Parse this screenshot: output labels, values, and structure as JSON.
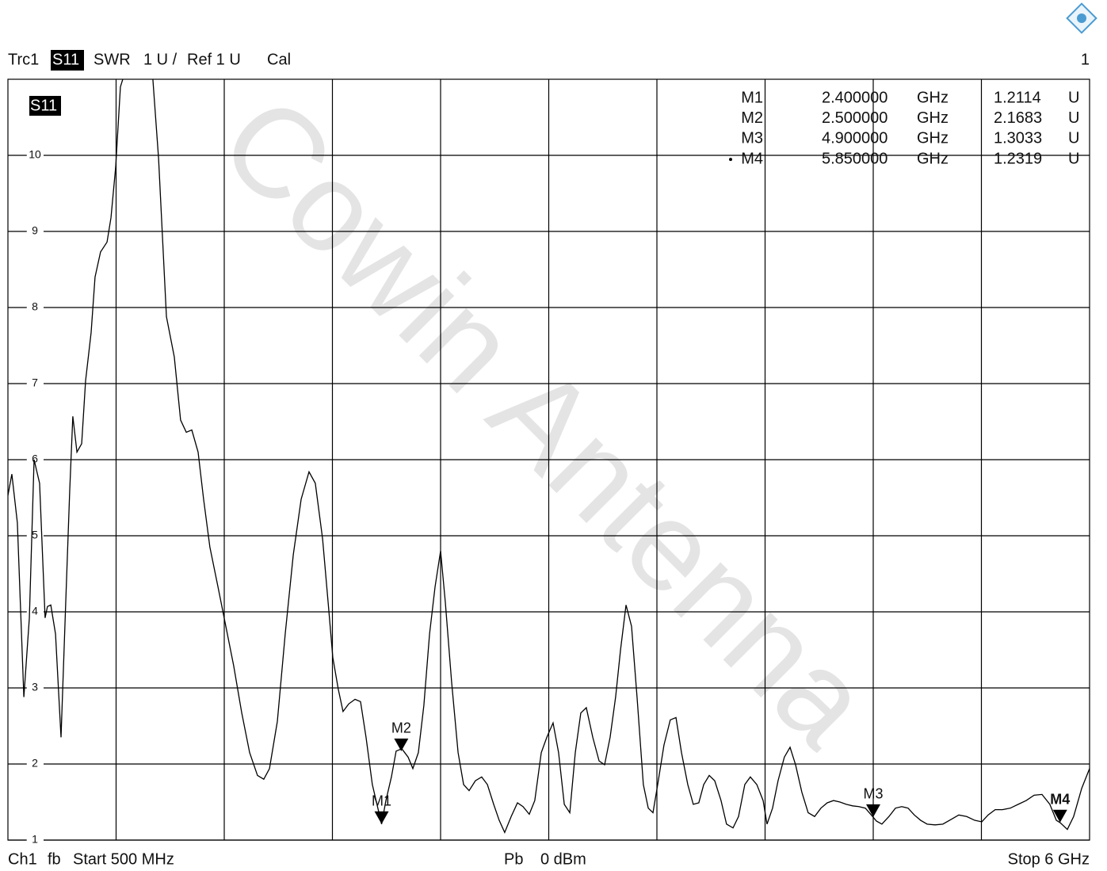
{
  "chart_data": {
    "type": "line",
    "header": {
      "trace": "Trc1",
      "format": "SWR",
      "scale": "1 U /",
      "ref": "Ref 1 U",
      "cal": "Cal",
      "window": "1"
    },
    "footer": {
      "channel": "Ch1",
      "mode": "fb",
      "start": "Start 500 MHz",
      "power_label": "Pb",
      "power": "0 dBm",
      "stop": "Stop 6 GHz"
    },
    "watermark": "Cowin Antenna",
    "xlim": [
      0.5,
      6
    ],
    "x_divisions": 10,
    "ylim": [
      1,
      11
    ],
    "yticks": [
      1,
      2,
      3,
      4,
      5,
      6,
      7,
      8,
      9,
      10
    ],
    "grid": true,
    "series": [
      {
        "name": "S11",
        "color": "#000000",
        "x": [
          0.5,
          0.52,
          0.548,
          0.581,
          0.609,
          0.633,
          0.661,
          0.689,
          0.701,
          0.718,
          0.742,
          0.77,
          0.794,
          0.814,
          0.83,
          0.851,
          0.875,
          0.895,
          0.923,
          0.943,
          0.971,
          1.004,
          1.024,
          1.048,
          1.072,
          1.084,
          1.145,
          1.237,
          1.266,
          1.306,
          1.346,
          1.378,
          1.407,
          1.435,
          1.467,
          1.495,
          1.527,
          1.568,
          1.608,
          1.648,
          1.689,
          1.729,
          1.769,
          1.801,
          1.83,
          1.87,
          1.91,
          1.951,
          1.991,
          2.031,
          2.063,
          2.1,
          2.128,
          2.152,
          2.18,
          2.204,
          2.233,
          2.265,
          2.293,
          2.321,
          2.353,
          2.4,
          2.422,
          2.45,
          2.474,
          2.503,
          2.535,
          2.559,
          2.587,
          2.615,
          2.644,
          2.672,
          2.7,
          2.724,
          2.756,
          2.789,
          2.817,
          2.845,
          2.877,
          2.909,
          2.938,
          2.97,
          2.998,
          3.026,
          3.059,
          3.091,
          3.119,
          3.151,
          3.179,
          3.212,
          3.24,
          3.272,
          3.3,
          3.329,
          3.357,
          3.385,
          3.413,
          3.441,
          3.474,
          3.506,
          3.534,
          3.562,
          3.59,
          3.615,
          3.643,
          3.671,
          3.699,
          3.731,
          3.756,
          3.78,
          3.804,
          3.836,
          3.868,
          3.897,
          3.925,
          3.957,
          3.985,
          4.013,
          4.038,
          4.066,
          4.094,
          4.126,
          4.154,
          4.187,
          4.215,
          4.247,
          4.275,
          4.308,
          4.34,
          4.36,
          4.388,
          4.416,
          4.448,
          4.477,
          4.505,
          4.537,
          4.569,
          4.602,
          4.634,
          4.666,
          4.698,
          4.731,
          4.763,
          4.795,
          4.827,
          4.86,
          4.9,
          4.916,
          4.944,
          4.98,
          5.013,
          5.045,
          5.077,
          5.109,
          5.141,
          5.174,
          5.214,
          5.254,
          5.295,
          5.335,
          5.375,
          5.416,
          5.452,
          5.484,
          5.52,
          5.557,
          5.597,
          5.637,
          5.678,
          5.718,
          5.758,
          5.798,
          5.831,
          5.85,
          5.887,
          5.919,
          5.96,
          6.0
        ],
        "values": [
          5.53,
          5.81,
          5.17,
          2.88,
          3.92,
          6.0,
          5.69,
          3.92,
          4.07,
          4.09,
          3.71,
          2.35,
          4.13,
          5.58,
          6.57,
          6.1,
          6.21,
          7.04,
          7.67,
          8.4,
          8.73,
          8.86,
          9.18,
          9.85,
          10.9,
          11.0,
          12.5,
          11.0,
          9.96,
          7.88,
          7.35,
          6.52,
          6.36,
          6.39,
          6.1,
          5.48,
          4.85,
          4.33,
          3.81,
          3.29,
          2.67,
          2.15,
          1.85,
          1.8,
          1.94,
          2.56,
          3.71,
          4.75,
          5.48,
          5.84,
          5.69,
          4.96,
          4.13,
          3.4,
          2.98,
          2.69,
          2.79,
          2.85,
          2.82,
          2.35,
          1.73,
          1.21,
          1.52,
          1.83,
          2.17,
          2.2,
          2.09,
          1.94,
          2.15,
          2.77,
          3.71,
          4.33,
          4.8,
          4.13,
          3.08,
          2.15,
          1.73,
          1.65,
          1.78,
          1.83,
          1.73,
          1.47,
          1.26,
          1.1,
          1.31,
          1.49,
          1.44,
          1.34,
          1.52,
          2.15,
          2.35,
          2.54,
          2.15,
          1.47,
          1.36,
          2.15,
          2.67,
          2.74,
          2.35,
          2.04,
          1.99,
          2.35,
          2.88,
          3.5,
          4.09,
          3.81,
          2.88,
          1.73,
          1.42,
          1.36,
          1.73,
          2.25,
          2.58,
          2.61,
          2.15,
          1.73,
          1.47,
          1.49,
          1.73,
          1.85,
          1.78,
          1.52,
          1.21,
          1.16,
          1.31,
          1.73,
          1.83,
          1.73,
          1.52,
          1.21,
          1.42,
          1.78,
          2.09,
          2.22,
          1.99,
          1.63,
          1.36,
          1.31,
          1.42,
          1.49,
          1.52,
          1.5,
          1.47,
          1.45,
          1.44,
          1.42,
          1.3,
          1.25,
          1.21,
          1.31,
          1.42,
          1.44,
          1.42,
          1.33,
          1.26,
          1.21,
          1.2,
          1.21,
          1.27,
          1.33,
          1.31,
          1.26,
          1.24,
          1.33,
          1.4,
          1.4,
          1.42,
          1.47,
          1.52,
          1.59,
          1.6,
          1.47,
          1.26,
          1.23,
          1.14,
          1.31,
          1.68,
          1.94
        ]
      }
    ],
    "markers": [
      {
        "name": "M1",
        "freq": 2.4,
        "freq_label": "2.400000",
        "freq_unit": "GHz",
        "value": 1.2114,
        "value_unit": "U"
      },
      {
        "name": "M2",
        "freq": 2.5,
        "freq_label": "2.500000",
        "freq_unit": "GHz",
        "value": 2.1683,
        "value_unit": "U"
      },
      {
        "name": "M3",
        "freq": 4.9,
        "freq_label": "4.900000",
        "freq_unit": "GHz",
        "value": 1.3033,
        "value_unit": "U"
      },
      {
        "name": "M4",
        "freq": 5.85,
        "freq_label": "5.850000",
        "freq_unit": "GHz",
        "value": 1.2319,
        "value_unit": "U",
        "active": true
      }
    ]
  }
}
